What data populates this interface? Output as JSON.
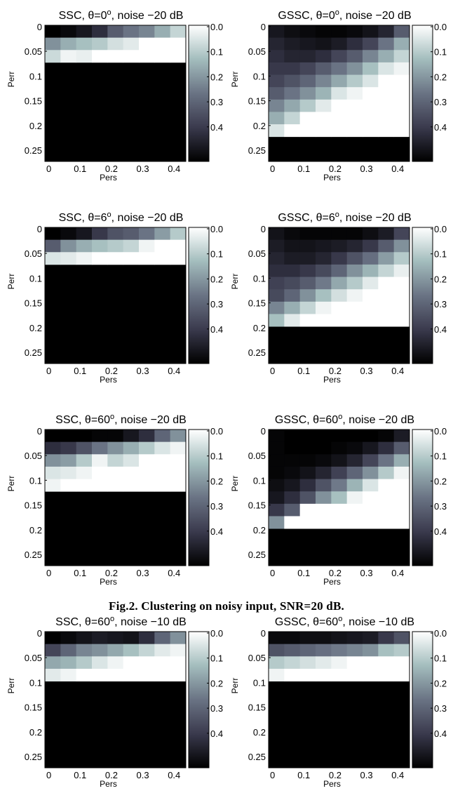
{
  "caption": "Fig.2. Clustering on noisy input, SNR=20 dB.",
  "colorbar": {
    "tick_labels": [
      "0.0",
      "0.1",
      "0.2",
      "0.3",
      "0.4"
    ],
    "tick_values": [
      0.0,
      0.1,
      0.2,
      0.3,
      0.4
    ],
    "range": [
      0,
      0.5
    ],
    "colormap": "bone",
    "colormap_stops": [
      "#000000",
      "#3a3a4d",
      "#6a7384",
      "#a3bdbd",
      "#ffffff"
    ]
  },
  "chart_data": [
    {
      "type": "heatmap",
      "title": "SSC, θ=0°, noise −20 dB",
      "title_parts": {
        "prefix": "SSC, θ=0",
        "sup": "o",
        "suffix": ", noise −20 dB"
      },
      "xlabel": "Pers",
      "ylabel": "Perr",
      "x_tick_labels": [
        "0",
        "0.1",
        "0.2",
        "0.3",
        "0.4"
      ],
      "y_tick_labels": [
        "0",
        "0.05",
        "0.1",
        "0.15",
        "0.2",
        "0.25"
      ],
      "x_range": [
        0,
        0.45
      ],
      "y_range": [
        0,
        0.275
      ],
      "cell_step": 0.025,
      "zmin": 0,
      "zmax": 0.5,
      "z": [
        [
          0.0,
          0.02,
          0.05,
          0.1,
          0.2,
          0.25,
          0.28,
          0.35,
          0.42
        ],
        [
          0.3,
          0.35,
          0.38,
          0.4,
          0.44,
          0.46,
          0.5,
          0.5,
          0.5
        ],
        [
          0.43,
          0.48,
          0.47,
          0.5,
          0.5,
          0.5,
          0.5,
          0.5,
          0.5
        ]
      ]
    },
    {
      "type": "heatmap",
      "title": "GSSC, θ=0°, noise −20 dB",
      "title_parts": {
        "prefix": "GSSC, θ=0",
        "sup": "o",
        "suffix": ", noise −20 dB"
      },
      "xlabel": "Pers",
      "ylabel": "Perr",
      "x_tick_labels": [
        "0",
        "0.1",
        "0.2",
        "0.3",
        "0.4"
      ],
      "y_tick_labels": [
        "0",
        "0.05",
        "0.1",
        "0.15",
        "0.2",
        "0.25"
      ],
      "x_range": [
        0,
        0.45
      ],
      "y_range": [
        0,
        0.275
      ],
      "cell_step": 0.025,
      "zmin": 0,
      "zmax": 0.5,
      "z": [
        [
          0.05,
          0.03,
          0.02,
          0.01,
          0.01,
          0.02,
          0.04,
          0.08,
          0.2
        ],
        [
          0.08,
          0.06,
          0.05,
          0.04,
          0.06,
          0.1,
          0.15,
          0.25,
          0.35
        ],
        [
          0.1,
          0.08,
          0.08,
          0.1,
          0.15,
          0.2,
          0.28,
          0.35,
          0.42
        ],
        [
          0.12,
          0.12,
          0.15,
          0.2,
          0.25,
          0.3,
          0.38,
          0.45,
          0.48
        ],
        [
          0.15,
          0.18,
          0.22,
          0.28,
          0.34,
          0.4,
          0.45,
          0.5,
          0.5
        ],
        [
          0.2,
          0.25,
          0.3,
          0.36,
          0.45,
          0.48,
          0.5,
          0.5,
          0.5
        ],
        [
          0.28,
          0.34,
          0.4,
          0.46,
          0.5,
          0.5,
          0.5,
          0.5,
          0.5
        ],
        [
          0.35,
          0.42,
          0.5,
          0.5,
          0.5,
          0.5,
          0.5,
          0.5,
          0.5
        ],
        [
          0.45,
          0.5,
          0.5,
          0.5,
          0.5,
          0.5,
          0.5,
          0.5,
          0.5
        ]
      ]
    },
    {
      "type": "heatmap",
      "title": "SSC, θ=6°, noise −20 dB",
      "title_parts": {
        "prefix": "SSC, θ=6",
        "sup": "o",
        "suffix": ", noise −20 dB"
      },
      "xlabel": "Pers",
      "ylabel": "Perr",
      "x_tick_labels": [
        "0",
        "0.1",
        "0.2",
        "0.3",
        "0.4"
      ],
      "y_tick_labels": [
        "0",
        "0.05",
        "0.1",
        "0.15",
        "0.2",
        "0.25"
      ],
      "x_range": [
        0,
        0.45
      ],
      "y_range": [
        0,
        0.275
      ],
      "cell_step": 0.025,
      "zmin": 0,
      "zmax": 0.5,
      "z": [
        [
          0.0,
          0.02,
          0.05,
          0.12,
          0.18,
          0.2,
          0.25,
          0.32,
          0.4
        ],
        [
          0.2,
          0.3,
          0.35,
          0.38,
          0.4,
          0.42,
          0.48,
          0.5,
          0.5
        ],
        [
          0.45,
          0.46,
          0.48,
          0.5,
          0.5,
          0.5,
          0.5,
          0.5,
          0.5
        ]
      ]
    },
    {
      "type": "heatmap",
      "title": "GSSC, θ=6°, noise −20 dB",
      "title_parts": {
        "prefix": "GSSC, θ=6",
        "sup": "o",
        "suffix": ", noise −20 dB"
      },
      "xlabel": "Pers",
      "ylabel": "Perr",
      "x_tick_labels": [
        "0",
        "0.1",
        "0.2",
        "0.3",
        "0.4"
      ],
      "y_tick_labels": [
        "0",
        "0.05",
        "0.1",
        "0.15",
        "0.2",
        "0.25"
      ],
      "x_range": [
        0,
        0.45
      ],
      "y_range": [
        0,
        0.275
      ],
      "cell_step": 0.025,
      "zmin": 0,
      "zmax": 0.5,
      "z": [
        [
          0.04,
          0.02,
          0.01,
          0.01,
          0.01,
          0.01,
          0.03,
          0.06,
          0.15
        ],
        [
          0.06,
          0.04,
          0.04,
          0.05,
          0.06,
          0.08,
          0.12,
          0.2,
          0.3
        ],
        [
          0.08,
          0.06,
          0.06,
          0.08,
          0.12,
          0.18,
          0.24,
          0.32,
          0.4
        ],
        [
          0.1,
          0.1,
          0.12,
          0.16,
          0.22,
          0.3,
          0.36,
          0.42,
          0.47
        ],
        [
          0.14,
          0.16,
          0.2,
          0.26,
          0.34,
          0.4,
          0.46,
          0.5,
          0.5
        ],
        [
          0.16,
          0.22,
          0.3,
          0.38,
          0.44,
          0.48,
          0.5,
          0.5,
          0.5
        ],
        [
          0.28,
          0.35,
          0.42,
          0.48,
          0.5,
          0.5,
          0.5,
          0.5,
          0.5
        ],
        [
          0.38,
          0.46,
          0.5,
          0.5,
          0.5,
          0.5,
          0.5,
          0.5,
          0.5
        ]
      ]
    },
    {
      "type": "heatmap",
      "title": "SSC, θ=60°, noise −20 dB",
      "title_parts": {
        "prefix": "SSC, θ=60",
        "sup": "o",
        "suffix": ", noise −20 dB"
      },
      "xlabel": "Pers",
      "ylabel": "Perr",
      "x_tick_labels": [
        "0",
        "0.1",
        "0.2",
        "0.3",
        "0.4"
      ],
      "y_tick_labels": [
        "0",
        "0.05",
        "0.1",
        "0.15",
        "0.2",
        "0.25"
      ],
      "x_range": [
        0,
        0.45
      ],
      "y_range": [
        0,
        0.275
      ],
      "cell_step": 0.025,
      "zmin": 0,
      "zmax": 0.5,
      "z": [
        [
          0.0,
          0.0,
          0.0,
          0.01,
          0.01,
          0.05,
          0.1,
          0.22,
          0.3
        ],
        [
          0.1,
          0.12,
          0.18,
          0.25,
          0.3,
          0.35,
          0.4,
          0.45,
          0.48
        ],
        [
          0.3,
          0.32,
          0.4,
          0.48,
          0.42,
          0.45,
          0.5,
          0.5,
          0.5
        ],
        [
          0.45,
          0.46,
          0.48,
          0.5,
          0.5,
          0.5,
          0.5,
          0.5,
          0.5
        ],
        [
          0.48,
          0.5,
          0.5,
          0.5,
          0.5,
          0.5,
          0.5,
          0.5,
          0.5
        ]
      ]
    },
    {
      "type": "heatmap",
      "title": "GSSC, θ=60°, noise −20 dB",
      "title_parts": {
        "prefix": "GSSC, θ=60",
        "sup": "o",
        "suffix": ", noise −20 dB"
      },
      "xlabel": "Pers",
      "ylabel": "Perr",
      "x_tick_labels": [
        "0",
        "0.1",
        "0.2",
        "0.3",
        "0.4"
      ],
      "y_tick_labels": [
        "0",
        "0.05",
        "0.1",
        "0.15",
        "0.2",
        "0.25"
      ],
      "x_range": [
        0,
        0.45
      ],
      "y_range": [
        0,
        0.275
      ],
      "cell_step": 0.025,
      "zmin": 0,
      "zmax": 0.5,
      "z": [
        [
          0.01,
          0.0,
          0.0,
          0.0,
          0.0,
          0.0,
          0.0,
          0.01,
          0.06
        ],
        [
          0.01,
          0.0,
          0.0,
          0.0,
          0.01,
          0.02,
          0.05,
          0.1,
          0.2
        ],
        [
          0.01,
          0.01,
          0.01,
          0.02,
          0.04,
          0.08,
          0.15,
          0.25,
          0.35
        ],
        [
          0.01,
          0.02,
          0.04,
          0.08,
          0.14,
          0.22,
          0.3,
          0.4,
          0.48
        ],
        [
          0.03,
          0.05,
          0.1,
          0.18,
          0.26,
          0.36,
          0.45,
          0.5,
          0.5
        ],
        [
          0.05,
          0.1,
          0.18,
          0.3,
          0.38,
          0.48,
          0.5,
          0.5,
          0.5
        ],
        [
          0.12,
          0.2,
          0.5,
          0.5,
          0.5,
          0.5,
          0.5,
          0.5,
          0.5
        ],
        [
          0.3,
          0.5,
          0.5,
          0.5,
          0.5,
          0.5,
          0.5,
          0.5,
          0.5
        ]
      ]
    },
    {
      "type": "heatmap",
      "title": "SSC, θ=60°, noise −10 dB",
      "title_parts": {
        "prefix": "SSC, θ=60",
        "sup": "o",
        "suffix": ", noise −10 dB"
      },
      "xlabel": "Pers",
      "ylabel": "Perr",
      "x_tick_labels": [
        "0",
        "0.1",
        "0.2",
        "0.3",
        "0.4"
      ],
      "y_tick_labels": [
        "0",
        "0.05",
        "0.1",
        "0.15",
        "0.2",
        "0.25"
      ],
      "x_range": [
        0,
        0.45
      ],
      "y_range": [
        0,
        0.275
      ],
      "cell_step": 0.025,
      "zmin": 0,
      "zmax": 0.5,
      "z": [
        [
          0.0,
          0.02,
          0.04,
          0.06,
          0.05,
          0.04,
          0.1,
          0.22,
          0.3
        ],
        [
          0.15,
          0.22,
          0.28,
          0.3,
          0.34,
          0.38,
          0.42,
          0.46,
          0.48
        ],
        [
          0.34,
          0.36,
          0.4,
          0.45,
          0.48,
          0.5,
          0.5,
          0.5,
          0.5
        ],
        [
          0.46,
          0.48,
          0.5,
          0.5,
          0.5,
          0.5,
          0.5,
          0.5,
          0.5
        ]
      ]
    },
    {
      "type": "heatmap",
      "title": "GSSC, θ=60°, noise −10 dB",
      "title_parts": {
        "prefix": "GSSC, θ=60",
        "sup": "o",
        "suffix": ", noise −10 dB"
      },
      "xlabel": "Pers",
      "ylabel": "Perr",
      "x_tick_labels": [
        "0",
        "0.1",
        "0.2",
        "0.3",
        "0.4"
      ],
      "y_tick_labels": [
        "0",
        "0.05",
        "0.1",
        "0.15",
        "0.2",
        "0.25"
      ],
      "x_range": [
        0,
        0.45
      ],
      "y_range": [
        0,
        0.275
      ],
      "cell_step": 0.025,
      "zmin": 0,
      "zmax": 0.5,
      "z": [
        [
          0.02,
          0.02,
          0.03,
          0.03,
          0.04,
          0.05,
          0.06,
          0.12,
          0.18
        ],
        [
          0.18,
          0.2,
          0.22,
          0.24,
          0.26,
          0.28,
          0.3,
          0.38,
          0.4
        ],
        [
          0.4,
          0.42,
          0.44,
          0.46,
          0.48,
          0.5,
          0.5,
          0.5,
          0.5
        ],
        [
          0.48,
          0.5,
          0.5,
          0.5,
          0.5,
          0.5,
          0.5,
          0.5,
          0.5
        ]
      ]
    }
  ]
}
